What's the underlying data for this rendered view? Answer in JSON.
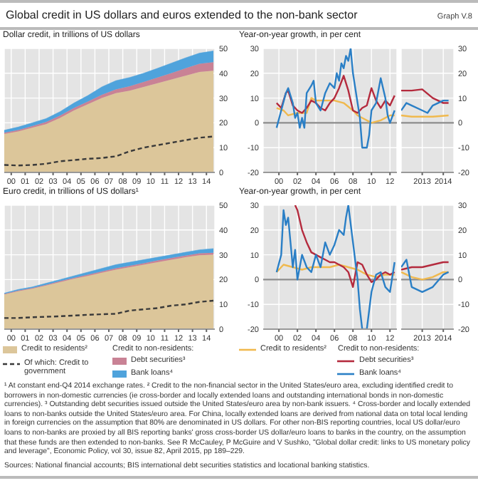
{
  "chart_data": [
    {
      "type": "other",
      "title": "Global credit in US dollars and euros extended to the non-bank sector",
      "annotations": [
        "Graph V.8"
      ]
    },
    {
      "type": "area",
      "title": "Dollar credit, in trillions of US dollars",
      "stacked": true,
      "grid": true,
      "x": [
        1999.5,
        2000.5,
        2001.5,
        2002.5,
        2003.5,
        2004.5,
        2005.5,
        2006.5,
        2007.5,
        2008.5,
        2009.5,
        2010.5,
        2011.5,
        2012.5,
        2013.5,
        2014.5
      ],
      "xlim": [
        1999.5,
        2014.6
      ],
      "xticks": [
        {
          "value": 2000,
          "label": "00"
        },
        {
          "value": 2001,
          "label": "01"
        },
        {
          "value": 2002,
          "label": "02"
        },
        {
          "value": 2003,
          "label": "03"
        },
        {
          "value": 2004,
          "label": "04"
        },
        {
          "value": 2005,
          "label": "05"
        },
        {
          "value": 2006,
          "label": "06"
        },
        {
          "value": 2007,
          "label": "07"
        },
        {
          "value": 2008,
          "label": "08"
        },
        {
          "value": 2009,
          "label": "09"
        },
        {
          "value": 2010,
          "label": "10"
        },
        {
          "value": 2011,
          "label": "11"
        },
        {
          "value": 2012,
          "label": "12"
        },
        {
          "value": 2013,
          "label": "13"
        },
        {
          "value": 2014,
          "label": "14"
        }
      ],
      "ylim": [
        0,
        50
      ],
      "yticks": [
        0,
        10,
        20,
        30,
        40,
        50
      ],
      "series": [
        {
          "color": "#dcc69a",
          "values": [
            15.5,
            16.5,
            18,
            19.5,
            22,
            25,
            27.5,
            30,
            32,
            33,
            34.5,
            36,
            37.5,
            39,
            40.5,
            41
          ]
        },
        {
          "type": "line",
          "line_style": "dashed",
          "color": "#3a3a3a",
          "values": [
            3,
            2.8,
            3,
            3.5,
            4.5,
            5,
            5.5,
            5.8,
            6.5,
            8.5,
            10,
            11,
            12,
            13,
            14,
            14.5
          ]
        },
        {
          "color": "#c98295",
          "values": [
            0.5,
            0.6,
            0.7,
            0.8,
            0.9,
            1,
            1.1,
            1.3,
            1.5,
            1.8,
            2,
            2.3,
            2.6,
            3,
            3.3,
            3.5
          ]
        },
        {
          "color": "#4fa3dc",
          "values": [
            1,
            1.2,
            1.3,
            1.4,
            1.6,
            2,
            2.4,
            3.2,
            3.5,
            3.5,
            3.5,
            3.7,
            4,
            4.2,
            4.3,
            4.5
          ]
        }
      ]
    },
    {
      "type": "line",
      "title": "Year-on-year growth, in per cent",
      "grid": true,
      "xlim": [
        1998.3,
        2012.75
      ],
      "xticks": [
        {
          "value": 2000,
          "label": "00"
        },
        {
          "value": 2002,
          "label": "02"
        },
        {
          "value": 2004,
          "label": "04"
        },
        {
          "value": 2006,
          "label": "06"
        },
        {
          "value": 2008,
          "label": "08"
        },
        {
          "value": 2010,
          "label": "10"
        },
        {
          "value": 2012,
          "label": "12"
        }
      ],
      "ylim": [
        -20,
        30
      ],
      "yticks": [
        -20,
        -10,
        0,
        10,
        20,
        30
      ],
      "ref_lines": [
        {
          "axis": "y",
          "value": 0,
          "color": "#8c8c8c"
        }
      ],
      "series": [
        {
          "color": "#f0b94e",
          "x": [
            1999.75,
            2000.5,
            2001,
            2002,
            2003,
            2003.5,
            2004,
            2005,
            2006,
            2007,
            2008,
            2008.5,
            2009,
            2010,
            2011,
            2012,
            2012.5
          ],
          "values": [
            6,
            5,
            3,
            4,
            4,
            10,
            9,
            9,
            9,
            8,
            5,
            3,
            2,
            0,
            1,
            3,
            3
          ]
        },
        {
          "color": "#b42a3d",
          "x": [
            1999.75,
            2000.25,
            2000.75,
            2001,
            2001.5,
            2002,
            2002.5,
            2003,
            2003.5,
            2004,
            2004.5,
            2005,
            2005.5,
            2006,
            2006.5,
            2007,
            2007.5,
            2008,
            2008.5,
            2009,
            2009.5,
            2010,
            2010.5,
            2011,
            2011.5,
            2012,
            2012.5
          ],
          "values": [
            8,
            6,
            12,
            13,
            7,
            5,
            4,
            6,
            9,
            8,
            6,
            5,
            8,
            10,
            14,
            19,
            13,
            5,
            4,
            6,
            7,
            14,
            9,
            6,
            9,
            7,
            11
          ]
        },
        {
          "color": "#2a7fc6",
          "x": [
            1999.75,
            2000.25,
            2000.75,
            2001,
            2001.5,
            2001.75,
            2002,
            2002.25,
            2002.5,
            2002.75,
            2003,
            2003.5,
            2003.75,
            2004,
            2004.5,
            2005,
            2005.5,
            2006,
            2006.25,
            2006.5,
            2006.75,
            2007,
            2007.25,
            2007.5,
            2007.75,
            2008,
            2008.5,
            2008.75,
            2009,
            2009.5,
            2009.75,
            2010,
            2010.5,
            2011,
            2011.5,
            2011.75,
            2012,
            2012.5
          ],
          "values": [
            -2,
            5,
            12,
            14,
            8,
            2,
            4,
            -2,
            2,
            -2,
            12,
            15,
            17,
            8,
            5,
            12,
            16,
            14,
            20,
            17,
            24,
            22,
            27,
            25,
            30,
            20,
            8,
            2,
            -10,
            -10,
            -5,
            5,
            8,
            18,
            10,
            3,
            0,
            5
          ]
        }
      ]
    },
    {
      "type": "line",
      "grid": true,
      "xlim": [
        2012.5,
        2015
      ],
      "xticks": [
        {
          "value": 2013.5,
          "label": "2013"
        },
        {
          "value": 2014.5,
          "label": "2014"
        }
      ],
      "ylim": [
        -20,
        30
      ],
      "yticks": [
        -20,
        -10,
        0,
        10,
        20,
        30
      ],
      "ref_lines": [
        {
          "axis": "y",
          "value": 0,
          "color": "#8c8c8c"
        }
      ],
      "series": [
        {
          "color": "#f0b94e",
          "x": [
            2012.5,
            2013,
            2014,
            2014.75
          ],
          "values": [
            3,
            2.5,
            2.5,
            3
          ]
        },
        {
          "color": "#b42a3d",
          "x": [
            2012.5,
            2013,
            2013.5,
            2014,
            2014.5,
            2014.75
          ],
          "values": [
            13,
            13,
            13.5,
            10,
            8,
            8
          ]
        },
        {
          "color": "#2a7fc6",
          "x": [
            2012.5,
            2012.75,
            2013,
            2013.5,
            2013.75,
            2014,
            2014.5,
            2014.75
          ],
          "values": [
            5,
            8,
            7,
            5,
            4,
            7,
            9,
            9
          ]
        }
      ]
    },
    {
      "type": "area",
      "title": "Euro credit, in trillions of US dollars¹",
      "stacked": true,
      "grid": true,
      "legend": "bottom",
      "legend_title": "Credit to non-residents:",
      "x": [
        1999.5,
        2000.5,
        2001.5,
        2002.5,
        2003.5,
        2004.5,
        2005.5,
        2006.5,
        2007.5,
        2008.5,
        2009.5,
        2010.5,
        2011.5,
        2012.5,
        2013.5,
        2014.5
      ],
      "xlim": [
        1999.5,
        2014.6
      ],
      "xticks": [
        {
          "value": 2000,
          "label": "00"
        },
        {
          "value": 2001,
          "label": "01"
        },
        {
          "value": 2002,
          "label": "02"
        },
        {
          "value": 2003,
          "label": "03"
        },
        {
          "value": 2004,
          "label": "04"
        },
        {
          "value": 2005,
          "label": "05"
        },
        {
          "value": 2006,
          "label": "06"
        },
        {
          "value": 2007,
          "label": "07"
        },
        {
          "value": 2008,
          "label": "08"
        },
        {
          "value": 2009,
          "label": "09"
        },
        {
          "value": 2010,
          "label": "10"
        },
        {
          "value": 2011,
          "label": "11"
        },
        {
          "value": 2012,
          "label": "12"
        },
        {
          "value": 2013,
          "label": "13"
        },
        {
          "value": 2014,
          "label": "14"
        }
      ],
      "ylim": [
        0,
        50
      ],
      "yticks": [
        0,
        10,
        20,
        30,
        40,
        50
      ],
      "series": [
        {
          "name": "Credit to residents²",
          "color": "#dcc69a",
          "values": [
            14,
            15.3,
            16.3,
            17.6,
            19,
            20.3,
            21.5,
            22.8,
            24,
            25,
            26,
            27,
            28,
            29,
            29.8,
            30
          ]
        },
        {
          "name": "Of which: Credit to government",
          "type": "line",
          "line_style": "dashed",
          "color": "#3a3a3a",
          "values": [
            4.5,
            4.5,
            4.8,
            5,
            5.2,
            5.5,
            5.8,
            6,
            6.2,
            7.5,
            8,
            8.5,
            9.5,
            10,
            11,
            11.5
          ]
        },
        {
          "name": "Debt securities³",
          "color": "#c98295",
          "values": [
            0.2,
            0.3,
            0.3,
            0.3,
            0.4,
            0.4,
            0.5,
            0.5,
            0.6,
            0.6,
            0.6,
            0.7,
            0.7,
            0.7,
            0.8,
            0.8
          ]
        },
        {
          "name": "Bank loans⁴",
          "color": "#4fa3dc",
          "values": [
            0.3,
            0.4,
            0.4,
            0.6,
            0.6,
            0.8,
            1,
            1.2,
            1.4,
            1.4,
            1.4,
            1.3,
            1.3,
            1.3,
            1.4,
            1.7
          ]
        }
      ]
    },
    {
      "type": "line",
      "title": "Year-on-year growth, in per cent",
      "grid": true,
      "legend": "bottom",
      "legend_title": "Credit to non-residents:",
      "xlim": [
        1998.3,
        2012.75
      ],
      "xticks": [
        {
          "value": 2000,
          "label": "00"
        },
        {
          "value": 2002,
          "label": "02"
        },
        {
          "value": 2004,
          "label": "04"
        },
        {
          "value": 2006,
          "label": "06"
        },
        {
          "value": 2008,
          "label": "08"
        },
        {
          "value": 2010,
          "label": "10"
        },
        {
          "value": 2012,
          "label": "12"
        }
      ],
      "ylim": [
        -20,
        30
      ],
      "yticks": [
        -20,
        -10,
        0,
        10,
        20,
        30
      ],
      "ref_lines": [
        {
          "axis": "y",
          "value": 0,
          "color": "#8c8c8c"
        }
      ],
      "series": [
        {
          "name": "Credit to residents²",
          "color": "#f0b94e",
          "x": [
            1999.75,
            2000.5,
            2001.5,
            2002.5,
            2003.5,
            2004.5,
            2005.5,
            2006.5,
            2007.5,
            2008.5,
            2009.5,
            2010.5,
            2011.5,
            2012.5
          ],
          "values": [
            3,
            6,
            5,
            4,
            5,
            5,
            5,
            6,
            5,
            4,
            2,
            1,
            2,
            2
          ]
        },
        {
          "name": "Debt securities³",
          "color": "#b42a3d",
          "x": [
            2001.75,
            2002,
            2002.5,
            2003,
            2003.5,
            2004,
            2004.5,
            2005,
            2005.5,
            2006,
            2006.5,
            2007,
            2007.5,
            2008,
            2008.5,
            2009,
            2009.5,
            2010,
            2010.5,
            2011,
            2011.5,
            2012,
            2012.5
          ],
          "values": [
            30,
            28,
            20,
            15,
            11,
            10,
            9,
            8,
            7,
            7,
            6,
            5,
            3,
            -3,
            7,
            6,
            2,
            -1,
            0,
            2,
            3,
            2,
            3
          ]
        },
        {
          "name": "Bank loans⁴",
          "color": "#2a7fc6",
          "x": [
            1999.75,
            2000.25,
            2000.5,
            2000.75,
            2001,
            2001.25,
            2001.5,
            2001.75,
            2002,
            2002.5,
            2003,
            2003.5,
            2004,
            2004.5,
            2005,
            2005.5,
            2006,
            2006.5,
            2007,
            2007.25,
            2007.5,
            2008,
            2008.5,
            2008.75,
            2009,
            2009.5,
            2010,
            2010.5,
            2011,
            2011.5,
            2012,
            2012.5
          ],
          "values": [
            3,
            10,
            28,
            22,
            25,
            15,
            5,
            12,
            0,
            10,
            5,
            3,
            10,
            5,
            15,
            10,
            14,
            20,
            18,
            25,
            30,
            15,
            0,
            -12,
            -20,
            -20,
            -5,
            2,
            3,
            -3,
            -5,
            7
          ]
        }
      ]
    },
    {
      "type": "line",
      "grid": true,
      "xlim": [
        2012.5,
        2015
      ],
      "xticks": [
        {
          "value": 2013.5,
          "label": "2013"
        },
        {
          "value": 2014.5,
          "label": "2014"
        }
      ],
      "ylim": [
        -20,
        30
      ],
      "yticks": [
        -20,
        -10,
        0,
        10,
        20,
        30
      ],
      "ref_lines": [
        {
          "axis": "y",
          "value": 0,
          "color": "#8c8c8c"
        }
      ],
      "series": [
        {
          "color": "#f0b94e",
          "x": [
            2012.5,
            2013,
            2013.5,
            2014,
            2014.5,
            2014.75
          ],
          "values": [
            3,
            1,
            0,
            1,
            3,
            3
          ]
        },
        {
          "color": "#b42a3d",
          "x": [
            2012.5,
            2013,
            2013.5,
            2014,
            2014.5,
            2014.75
          ],
          "values": [
            4,
            5,
            5,
            6,
            7,
            7
          ]
        },
        {
          "color": "#2a7fc6",
          "x": [
            2012.5,
            2012.75,
            2013,
            2013.5,
            2014,
            2014.5,
            2014.75
          ],
          "values": [
            5,
            8,
            -3,
            -5,
            -3,
            2,
            3
          ]
        }
      ]
    },
    {
      "type": "other",
      "annotations": [
        "¹ At constant end-Q4 2014 exchange rates.  ² Credit to the non-financial sector in the United States/euro area, excluding identified credit to borrowers in non-domestic currencies (ie cross-border and locally extended loans and outstanding international bonds in non-domestic currencies).  ³ Outstanding debt securities issued outside the United States/euro area by non-bank issuers.  ⁴ Cross-border and locally extended loans to non-banks outside the United States/euro area. For China, locally extended loans are derived from national data on total local lending in foreign currencies on the assumption that 80% are denominated in US dollars. For other non-BIS reporting countries, local US dollar/euro loans to non-banks are proxied by all BIS reporting banks' gross cross-border US dollar/euro loans to banks in the country, on the assumption that these funds are then extended to non-banks. See R McCauley, P McGuire and V Sushko, \"Global dollar credit: links to US monetary policy and leverage\", Economic Policy, vol 30, issue 82, April 2015, pp 189–229.",
        "Sources: National financial accounts; BIS international debt securities statistics and locational banking statistics."
      ]
    }
  ]
}
